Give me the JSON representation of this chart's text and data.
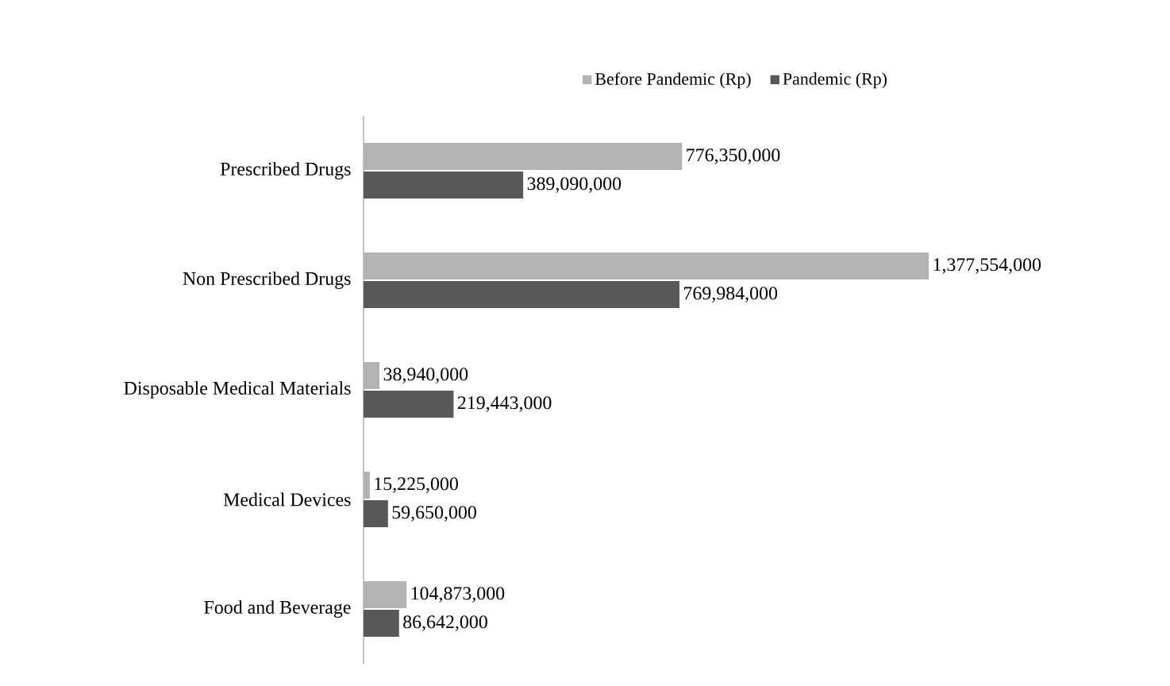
{
  "chart_data": {
    "type": "bar",
    "orientation": "horizontal",
    "categories": [
      "Prescribed Drugs",
      "Non Prescribed Drugs",
      "Disposable Medical Materials",
      "Medical Devices",
      "Food and Beverage"
    ],
    "series": [
      {
        "name": "Before Pandemic (Rp)",
        "color": "#b3b3b3",
        "values": [
          776350000,
          1377554000,
          38940000,
          15225000,
          104873000
        ],
        "value_labels": [
          "776,350,000",
          "1,377,554,000",
          "38,940,000",
          "15,225,000",
          "104,873,000"
        ]
      },
      {
        "name": "Pandemic (Rp)",
        "color": "#595959",
        "values": [
          389090000,
          769984000,
          219443000,
          59650000,
          86642000
        ],
        "value_labels": [
          "389,090,000",
          "769,984,000",
          "219,443,000",
          "59,650,000",
          "86,642,000"
        ]
      }
    ],
    "legend": "top"
  }
}
